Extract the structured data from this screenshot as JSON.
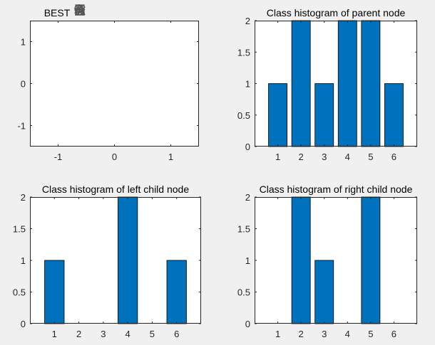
{
  "figure": {
    "background": "#f0f0f0",
    "axes_color": "#262626",
    "bar_color": "#0072bd",
    "toolbar": {
      "icons": [
        "brush-icon",
        "data-cursor-icon",
        "legend-icon",
        "pan-hand-icon",
        "zoom-in-icon",
        "zoom-out-icon",
        "home-icon"
      ]
    }
  },
  "chart_data": [
    {
      "type": "line",
      "title": "BEST",
      "xlim": [
        -1.5,
        1.5
      ],
      "ylim": [
        -1.5,
        1.5
      ],
      "xticks": [
        -1,
        0,
        1
      ],
      "yticks": [
        -1,
        0,
        1
      ],
      "xtick_labels": [
        "-1",
        "0",
        "1"
      ],
      "ytick_labels": [
        "-1",
        "0",
        "1"
      ],
      "series": []
    },
    {
      "type": "bar",
      "title": "Class histogram of parent node",
      "categories": [
        "1",
        "2",
        "3",
        "4",
        "5",
        "6"
      ],
      "values": [
        1,
        2,
        1,
        2,
        2,
        1
      ],
      "xlim": [
        0,
        7
      ],
      "ylim": [
        0,
        2
      ],
      "yticks": [
        0,
        0.5,
        1,
        1.5,
        2
      ],
      "ytick_labels": [
        "0",
        "0.5",
        "1",
        "1.5",
        "2"
      ]
    },
    {
      "type": "bar",
      "title": "Class histogram of left child node",
      "categories": [
        "1",
        "2",
        "3",
        "4",
        "5",
        "6"
      ],
      "values": [
        1,
        0,
        0,
        2,
        0,
        1
      ],
      "xlim": [
        0,
        7
      ],
      "ylim": [
        0,
        2
      ],
      "yticks": [
        0,
        0.5,
        1,
        1.5,
        2
      ],
      "ytick_labels": [
        "0",
        "0.5",
        "1",
        "1.5",
        "2"
      ]
    },
    {
      "type": "bar",
      "title": "Class histogram of right child node",
      "categories": [
        "1",
        "2",
        "3",
        "4",
        "5",
        "6"
      ],
      "values": [
        0,
        2,
        1,
        0,
        2,
        0
      ],
      "xlim": [
        0,
        7
      ],
      "ylim": [
        0,
        2
      ],
      "yticks": [
        0,
        0.5,
        1,
        1.5,
        2
      ],
      "ytick_labels": [
        "0",
        "0.5",
        "1",
        "1.5",
        "2"
      ]
    }
  ]
}
